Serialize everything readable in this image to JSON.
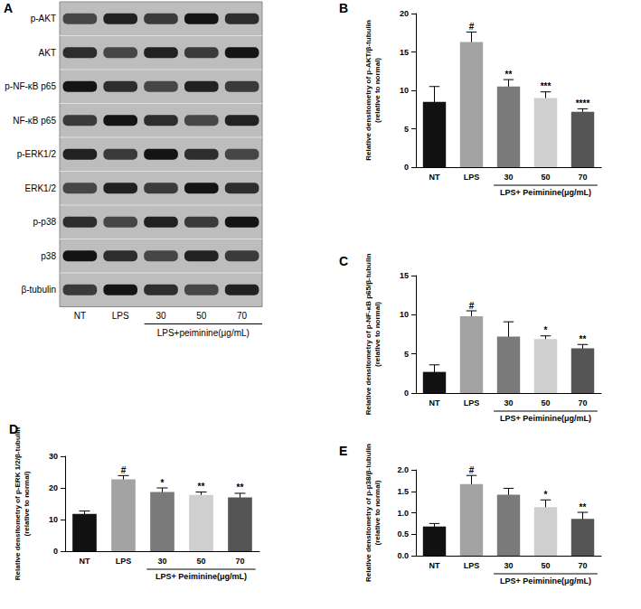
{
  "blot": {
    "title": "A",
    "rows": [
      "p-AKT",
      "AKT",
      "p-NF-κB p65",
      "NF-κB p65",
      "p-ERK1/2",
      "ERK1/2",
      "p-p38",
      "p38",
      "β-tubulin"
    ],
    "lanes": [
      "NT",
      "LPS",
      "30",
      "50",
      "70"
    ],
    "group_label": "LPS+peiminine(μg/mL)"
  },
  "chart_data": [
    {
      "type": "bar",
      "title": "B",
      "ylabel": "Relative densitometry of p-AKT/β-tubulin\n(relative to normal)",
      "xlabel": "LPS+ Peiminine(μg/mL)",
      "categories": [
        "NT",
        "LPS",
        "30",
        "50",
        "70"
      ],
      "values": [
        8.5,
        16.3,
        10.5,
        9.0,
        7.2
      ],
      "errors": [
        2.0,
        1.3,
        0.9,
        0.8,
        0.4
      ],
      "annotations": [
        null,
        "#",
        "**",
        "***",
        "****"
      ],
      "colors": [
        "#111111",
        "#a3a3a3",
        "#7a7a7a",
        "#cfcfcf",
        "#555555"
      ],
      "ylim": [
        0,
        20
      ],
      "yticks": [
        0,
        5,
        10,
        15,
        20
      ],
      "grid": false
    },
    {
      "type": "bar",
      "title": "C",
      "ylabel": "Relative densitometry of p-NF-κB p65/β-tubulin\n(relative to normal)",
      "xlabel": "LPS+ Peiminine(μg/mL)",
      "categories": [
        "NT",
        "LPS",
        "30",
        "50",
        "70"
      ],
      "values": [
        2.7,
        9.8,
        7.2,
        6.9,
        5.7
      ],
      "errors": [
        0.9,
        0.7,
        1.9,
        0.4,
        0.5
      ],
      "annotations": [
        null,
        "#",
        null,
        "*",
        "**"
      ],
      "colors": [
        "#111111",
        "#a3a3a3",
        "#7a7a7a",
        "#cfcfcf",
        "#555555"
      ],
      "ylim": [
        0,
        15
      ],
      "yticks": [
        0,
        5,
        10,
        15
      ],
      "grid": false
    },
    {
      "type": "bar",
      "title": "D",
      "ylabel": "Relative densitometry of p-ERK 1/2/β-tubulin\n(relative to normal)",
      "xlabel": "LPS+ Peiminine(μg/mL)",
      "categories": [
        "NT",
        "LPS",
        "30",
        "50",
        "70"
      ],
      "values": [
        11.8,
        22.7,
        18.7,
        17.8,
        17.0
      ],
      "errors": [
        0.9,
        1.2,
        1.3,
        0.9,
        1.3
      ],
      "annotations": [
        null,
        "#",
        "*",
        "**",
        "**"
      ],
      "colors": [
        "#111111",
        "#a3a3a3",
        "#7a7a7a",
        "#cfcfcf",
        "#555555"
      ],
      "ylim": [
        0,
        30
      ],
      "yticks": [
        0,
        10,
        20,
        30
      ],
      "grid": false
    },
    {
      "type": "bar",
      "title": "E",
      "ylabel": "Relative densitometry of p-p38/β-tubulin\n(relative to normal)",
      "xlabel": "LPS+ Peiminine(μg/mL)",
      "categories": [
        "NT",
        "LPS",
        "30",
        "50",
        "70"
      ],
      "values": [
        0.68,
        1.67,
        1.42,
        1.13,
        0.86
      ],
      "errors": [
        0.07,
        0.2,
        0.15,
        0.17,
        0.15
      ],
      "annotations": [
        null,
        "#",
        null,
        "*",
        "**"
      ],
      "colors": [
        "#111111",
        "#a3a3a3",
        "#7a7a7a",
        "#cfcfcf",
        "#555555"
      ],
      "ylim": [
        0,
        2
      ],
      "yticks": [
        {
          "value": 0,
          "label": "0.0"
        },
        0.5,
        {
          "value": 1,
          "label": "1.0"
        },
        1.5,
        {
          "value": 2,
          "label": "2.0"
        }
      ],
      "grid": false
    }
  ]
}
